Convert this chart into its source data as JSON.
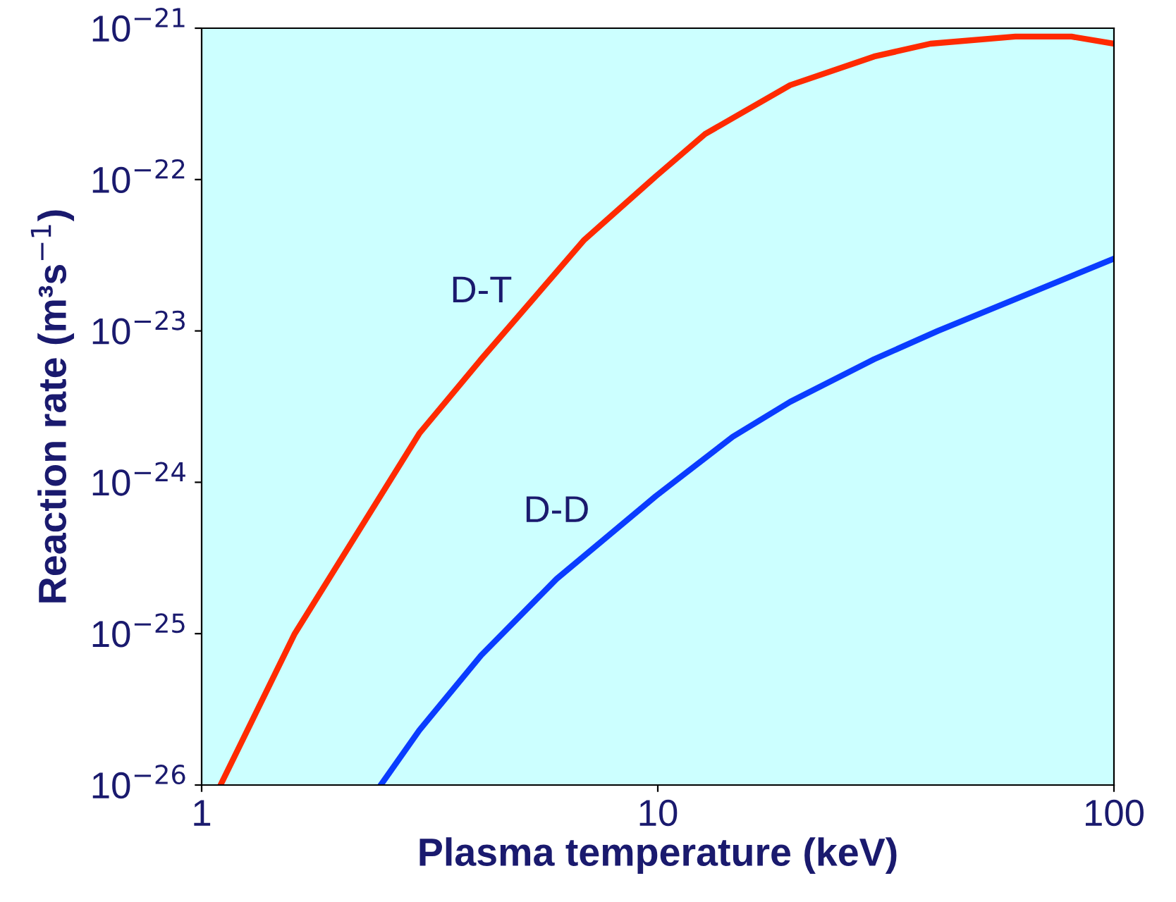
{
  "chart_data": {
    "type": "line",
    "xlabel": "Plasma temperature (keV)",
    "ylabel": "Reaction rate (m³s$^{−1}$)",
    "log": "xy",
    "grid": false,
    "marker": "none",
    "line_style": "solid",
    "xlim": [
      1,
      100
    ],
    "xticks": [
      1,
      10,
      100
    ],
    "ylim": [
      1e-26,
      1e-21
    ],
    "yticks": [
      {
        "value": 1e-26,
        "label": "10$^{−26}$"
      },
      {
        "value": 1e-25,
        "label": "10$^{−25}$"
      },
      {
        "value": 1e-24,
        "label": "10$^{−24}$"
      },
      {
        "value": 1e-23,
        "label": "10$^{−23}$"
      },
      {
        "value": 1e-22,
        "label": "10$^{−22}$"
      },
      {
        "value": 1e-21,
        "label": "10$^{−21}$"
      }
    ],
    "series": [
      {
        "name": "D-T",
        "color": "#ff2a00",
        "x": [
          1.1,
          1.6,
          3.0,
          4.1,
          6.9,
          9.9,
          12.7,
          19.5,
          29.8,
          39.6,
          60.8,
          80.7,
          100
        ],
        "values": [
          1e-26,
          1e-25,
          2.1e-24,
          6.5e-24,
          4e-23,
          1.05e-22,
          2e-22,
          4.2e-22,
          6.5e-22,
          7.9e-22,
          8.8e-22,
          8.8e-22,
          7.9e-22
        ]
      },
      {
        "name": "D-D",
        "color": "#0a3cff",
        "x": [
          2.47,
          3.0,
          4.1,
          6.0,
          9.9,
          14.6,
          19.5,
          29.8,
          41.1,
          100
        ],
        "values": [
          1e-26,
          2.3e-26,
          7.2e-26,
          2.3e-25,
          8.1e-25,
          2e-24,
          3.4e-24,
          6.5e-24,
          1e-23,
          3e-23
        ]
      }
    ]
  }
}
